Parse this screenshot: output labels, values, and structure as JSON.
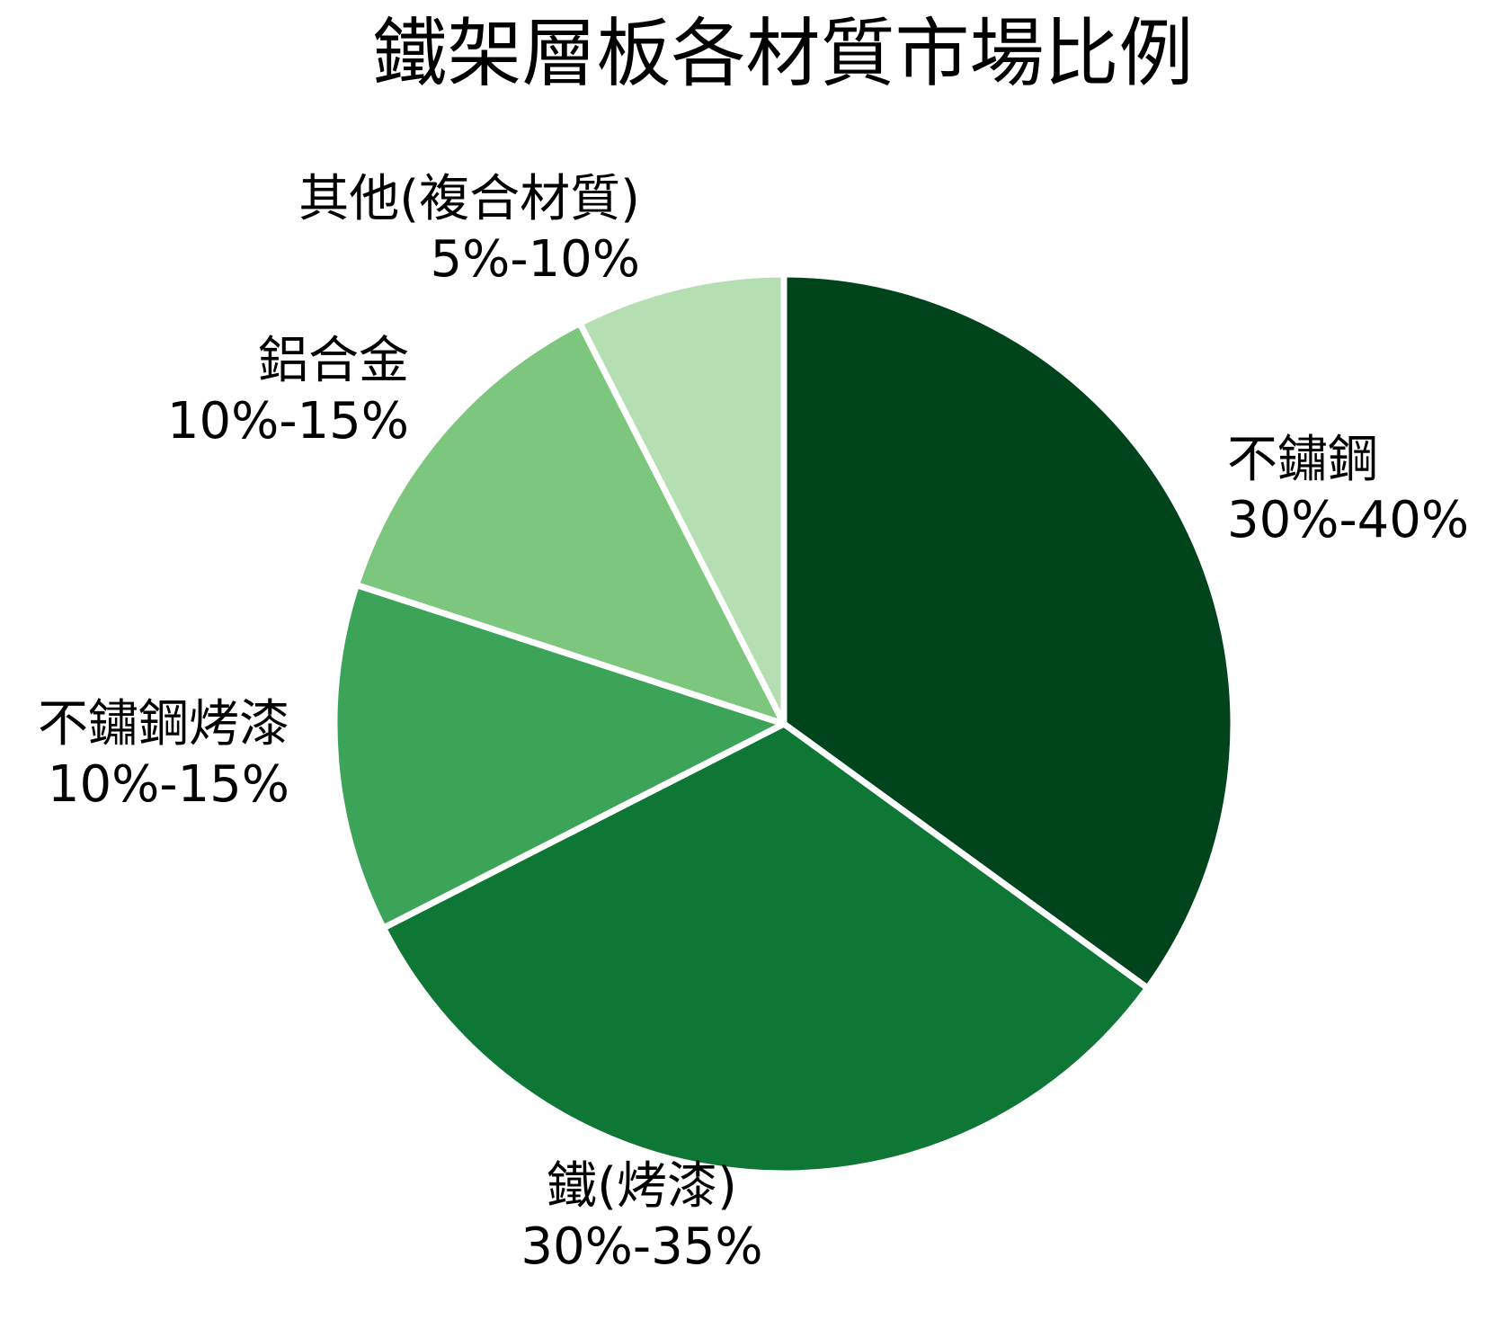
{
  "chart_data": {
    "type": "pie",
    "title": "鐵架層板各材質市場比例",
    "legend": "none",
    "start_angle": "12 o'clock",
    "direction": "clockwise",
    "slice_divider_color": "#ffffff",
    "slices": [
      {
        "label": "不鏽鋼",
        "range": "30%-40%",
        "value": 35,
        "color": "#00441c"
      },
      {
        "label": "鐵(烤漆)",
        "range": "30%-35%",
        "value": 32.5,
        "color": "#0e7735"
      },
      {
        "label": "不鏽鋼烤漆",
        "range": "10%-15%",
        "value": 12.5,
        "color": "#3ca459"
      },
      {
        "label": "鋁合金",
        "range": "10%-15%",
        "value": 12.5,
        "color": "#7dc67e"
      },
      {
        "label": "其他(複合材質)",
        "range": "5%-10%",
        "value": 7.5,
        "color": "#b5dfb3"
      }
    ]
  }
}
